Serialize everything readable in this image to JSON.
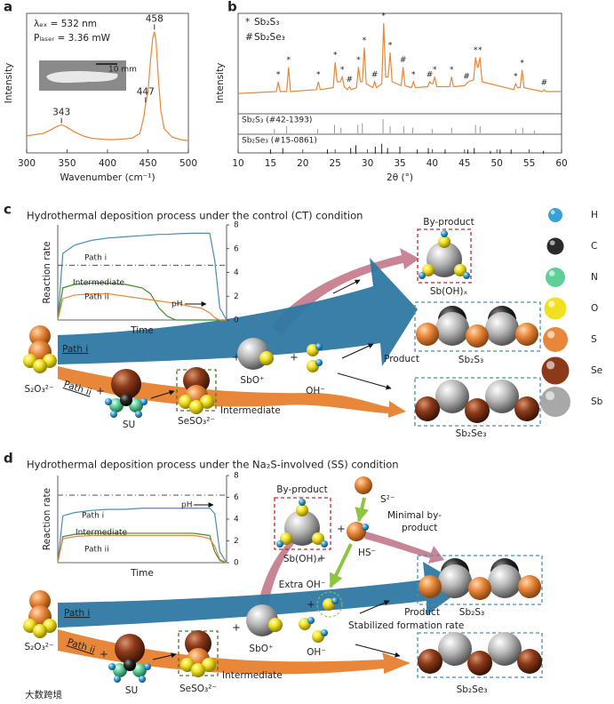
{
  "chart_data": [
    {
      "type": "line",
      "panel_label": "a",
      "x_label": "Wavenumber (cm⁻¹)",
      "y_label": "Intensity",
      "annotations": [
        "λₑₓ = 532 nm",
        "Pₗₐₛₑᵣ = 3.36 mW"
      ],
      "inset_label": "10 mm",
      "x": [
        300,
        310,
        320,
        330,
        335,
        340,
        343,
        346,
        350,
        360,
        370,
        380,
        390,
        400,
        410,
        420,
        430,
        440,
        445,
        447,
        450,
        453,
        456,
        458,
        460,
        463,
        466,
        470,
        480,
        490,
        500
      ],
      "series": [
        {
          "color": "#e8873a",
          "values": [
            0.14,
            0.15,
            0.16,
            0.19,
            0.21,
            0.225,
            0.23,
            0.225,
            0.21,
            0.17,
            0.14,
            0.12,
            0.115,
            0.11,
            0.11,
            0.115,
            0.12,
            0.16,
            0.3,
            0.4,
            0.5,
            0.75,
            0.95,
            1.0,
            0.92,
            0.6,
            0.35,
            0.2,
            0.13,
            0.11,
            0.1
          ]
        }
      ],
      "peak_labels": [
        343,
        447,
        458
      ],
      "xlim": [
        300,
        500
      ],
      "xticks": [
        300,
        350,
        400,
        450,
        500
      ],
      "ylim": [
        0,
        1.15
      ],
      "frame": true
    },
    {
      "type": "line",
      "panel_label": "b",
      "x_label": "2θ (°)",
      "y_label": "Intensity",
      "legend": [
        {
          "symbol": "*",
          "label": "Sb₂S₃"
        },
        {
          "symbol": "#",
          "label": "Sb₂Se₃"
        }
      ],
      "x": [
        10,
        15.9,
        16.2,
        16.5,
        17.5,
        17.8,
        18.1,
        22.1,
        22.4,
        22.7,
        24.7,
        25,
        25.3,
        25.8,
        26.1,
        26.4,
        26.9,
        27.2,
        27.5,
        28.3,
        28.6,
        28.9,
        29.2,
        29.5,
        29.8,
        30.8,
        31.1,
        31.4,
        32.2,
        32.5,
        32.8,
        33.2,
        33.5,
        33.8,
        35.2,
        35.5,
        35.8,
        36.8,
        37.1,
        37.4,
        39.3,
        39.6,
        39.9,
        40.1,
        40.4,
        40.7,
        42.7,
        43,
        43.3,
        45,
        45.3,
        45.6,
        46.4,
        46.7,
        47,
        47.1,
        47.4,
        47.7,
        52.6,
        52.9,
        53.2,
        53.6,
        53.9,
        54.2,
        57,
        57.3,
        57.6,
        60
      ],
      "series": [
        {
          "color": "#e8873a",
          "values": [
            0.18,
            0.2,
            0.3,
            0.2,
            0.2,
            0.45,
            0.2,
            0.22,
            0.3,
            0.22,
            0.24,
            0.5,
            0.3,
            0.3,
            0.35,
            0.25,
            0.22,
            0.25,
            0.22,
            0.24,
            0.45,
            0.3,
            0.3,
            0.65,
            0.28,
            0.24,
            0.3,
            0.24,
            0.28,
            0.9,
            0.35,
            0.35,
            0.6,
            0.3,
            0.26,
            0.45,
            0.26,
            0.24,
            0.3,
            0.24,
            0.25,
            0.3,
            0.28,
            0.28,
            0.35,
            0.25,
            0.25,
            0.35,
            0.25,
            0.26,
            0.28,
            0.3,
            0.32,
            0.55,
            0.45,
            0.45,
            0.55,
            0.3,
            0.22,
            0.28,
            0.24,
            0.24,
            0.42,
            0.24,
            0.2,
            0.22,
            0.2,
            0.2
          ]
        }
      ],
      "peak_markers": [
        {
          "x": 16.2,
          "label": "*"
        },
        {
          "x": 17.8,
          "label": "*"
        },
        {
          "x": 22.4,
          "label": "*"
        },
        {
          "x": 25,
          "label": "*"
        },
        {
          "x": 26.1,
          "label": "*"
        },
        {
          "x": 27.2,
          "label": "#"
        },
        {
          "x": 28.6,
          "label": "*"
        },
        {
          "x": 29.5,
          "label": "*"
        },
        {
          "x": 31.1,
          "label": "#"
        },
        {
          "x": 32.5,
          "label": "*"
        },
        {
          "x": 33.5,
          "label": "*"
        },
        {
          "x": 35.5,
          "label": "#"
        },
        {
          "x": 37.1,
          "label": "*"
        },
        {
          "x": 39.6,
          "label": "#"
        },
        {
          "x": 40.4,
          "label": "*"
        },
        {
          "x": 43,
          "label": "*"
        },
        {
          "x": 45.3,
          "label": "#"
        },
        {
          "x": 46.7,
          "label": "*"
        },
        {
          "x": 47.4,
          "label": "*"
        },
        {
          "x": 52.9,
          "label": "*"
        },
        {
          "x": 53.9,
          "label": "*"
        },
        {
          "x": 57.3,
          "label": "#"
        }
      ],
      "references": [
        {
          "label": "Sb₂S₃ (#42-1393)",
          "color": "#999999",
          "positions": [
            15.6,
            17.5,
            22.3,
            24.9,
            25.9,
            28.5,
            29.2,
            32.4,
            33.5,
            35.6,
            37.0,
            40.0,
            43.0,
            46.7,
            47.4,
            52.9,
            54.0,
            55.8
          ],
          "heights": [
            0.3,
            0.5,
            0.3,
            0.6,
            0.4,
            0.6,
            0.7,
            1,
            0.5,
            0.5,
            0.4,
            0.3,
            0.4,
            0.6,
            0.5,
            0.3,
            0.4,
            0.2
          ]
        },
        {
          "label": "Sb₂Se₃ (#15-0861)",
          "color": "#222222",
          "positions": [
            15.0,
            16.9,
            23.8,
            27.4,
            28.2,
            31.2,
            32.2,
            33.1,
            35.0,
            37.7,
            39.4,
            42.0,
            45.5,
            46.5,
            49.0,
            50.5,
            52.2,
            57.2
          ],
          "heights": [
            0.3,
            0.4,
            0.3,
            0.4,
            0.6,
            0.5,
            0.7,
            0.4,
            0.5,
            0.3,
            0.4,
            0.3,
            0.3,
            0.4,
            0.2,
            0.3,
            0.3,
            0.2
          ]
        }
      ],
      "xlim": [
        10,
        60
      ],
      "xticks": [
        10,
        15,
        20,
        25,
        30,
        35,
        40,
        45,
        50,
        55,
        60
      ],
      "ylim": [
        0,
        1
      ],
      "frame": true
    },
    {
      "type": "line",
      "x_label": "Time",
      "y_label": "Reaction rate",
      "x": [
        0,
        0.3,
        1,
        2,
        3,
        4,
        5,
        5.5,
        6,
        6.5,
        7,
        8,
        8.5,
        9,
        9.3,
        9.6,
        10
      ],
      "series": [
        {
          "name": "Path i",
          "color": "#4b8db5",
          "values": [
            0,
            5.6,
            6.3,
            6.7,
            6.9,
            7.0,
            7.1,
            7.15,
            7.2,
            7.2,
            7.25,
            7.3,
            7.3,
            7.3,
            5,
            1,
            0
          ]
        },
        {
          "name": "Intermediate",
          "color": "#3f8a2e",
          "values": [
            0,
            2.7,
            3.0,
            3.1,
            3.1,
            3.0,
            2.7,
            2.2,
            1.0,
            0.3,
            0,
            0,
            0,
            0,
            0,
            0,
            0
          ]
        },
        {
          "name": "Path ii",
          "color": "#e8873a",
          "values": [
            0,
            1.8,
            2.1,
            2.2,
            2.2,
            2.0,
            1.8,
            1.7,
            1.6,
            1.5,
            1.4,
            1.1,
            1.0,
            0.6,
            0.2,
            0,
            0
          ]
        },
        {
          "name": "pH",
          "color": "#666666",
          "dash": "dashdot",
          "values": [
            4.6,
            4.6,
            4.6,
            4.6,
            4.6,
            4.6,
            4.6,
            4.6,
            4.6,
            4.6,
            4.6,
            4.6,
            4.6,
            4.6,
            4.6,
            4.6,
            4.6
          ]
        }
      ],
      "xlim": [
        0,
        10
      ],
      "ylim": [
        0,
        8
      ],
      "yticks": [
        0,
        2,
        4,
        6,
        8
      ],
      "ytick_side": "right",
      "frame": false
    },
    {
      "type": "line",
      "x_label": "Time",
      "y_label": "Reaction rate",
      "x": [
        0,
        0.3,
        1,
        2,
        3,
        4,
        5,
        5.5,
        6,
        6.5,
        7,
        8,
        8.5,
        9,
        9.3,
        9.6,
        10
      ],
      "series": [
        {
          "name": "Path i",
          "color": "#4b8db5",
          "values": [
            0,
            4.3,
            4.6,
            4.8,
            4.9,
            4.9,
            5.0,
            5.0,
            5.0,
            5.0,
            5.0,
            5.0,
            5.0,
            5.0,
            4.5,
            1,
            0
          ]
        },
        {
          "name": "Intermediate",
          "color": "#3f8a2e",
          "values": [
            0,
            2.4,
            2.6,
            2.7,
            2.7,
            2.7,
            2.7,
            2.7,
            2.7,
            2.7,
            2.7,
            2.7,
            2.6,
            2.5,
            1,
            0.2,
            0
          ]
        },
        {
          "name": "Path ii",
          "color": "#e8873a",
          "values": [
            0,
            2.2,
            2.4,
            2.5,
            2.5,
            2.5,
            2.5,
            2.5,
            2.5,
            2.5,
            2.5,
            2.5,
            2.4,
            2.2,
            1.5,
            0.3,
            0
          ]
        },
        {
          "name": "pH",
          "color": "#666666",
          "dash": "dashdot",
          "values": [
            6.2,
            6.2,
            6.2,
            6.2,
            6.2,
            6.2,
            6.2,
            6.2,
            6.2,
            6.2,
            6.2,
            6.2,
            6.2,
            6.2,
            6.2,
            6.2,
            6.2
          ]
        }
      ],
      "xlim": [
        0,
        10
      ],
      "ylim": [
        0,
        8
      ],
      "yticks": [
        0,
        2,
        4,
        6,
        8
      ],
      "ytick_side": "right",
      "frame": false
    }
  ],
  "panels": {
    "c": {
      "label": "c",
      "title": "Hydrothermal deposition process under the control (CT) condition",
      "by_product": "By-product",
      "by_product_species": "Sb(OH)ₓ",
      "product": "Product",
      "sb2s3": "Sb₂S₃",
      "sb2se3": "Sb₂Se₃",
      "path_i": "Path i",
      "path_ii": "Path ii",
      "precursor": "S₂O₃²⁻",
      "su": "SU",
      "intermediate_species": "SeSO₃²⁻",
      "intermediate": "Intermediate",
      "sbo": "SbO⁺",
      "oh": "OH⁻",
      "plus": "+"
    },
    "d": {
      "label": "d",
      "title": "Hydrothermal deposition process under the Na₂S-involved (SS) condition",
      "by_product": "By-product",
      "by_product_species": "Sb(OH)ₓ",
      "product": "Product",
      "sb2s3": "Sb₂S₃",
      "sb2se3": "Sb₂Se₃",
      "path_i": "Path i",
      "path_ii": "Path ii",
      "precursor": "S₂O₃²⁻",
      "su": "SU",
      "intermediate_species": "SeSO₃²⁻",
      "intermediate": "Intermediate",
      "sbo": "SbO⁺",
      "oh": "OH⁻",
      "plus": "+",
      "s2": "S²⁻",
      "hs": "HS⁻",
      "minimal_by_product": [
        "Minimal by-",
        "product"
      ],
      "extra_oh": "Extra OH⁻",
      "stabilized": "Stabilized formation rate"
    }
  },
  "atom_legend": [
    {
      "label": "H",
      "color": "#3aa0d8"
    },
    {
      "label": "C",
      "color": "#2a2a2a"
    },
    {
      "label": "N",
      "color": "#5fcf9a"
    },
    {
      "label": "O",
      "color": "#f0e020"
    },
    {
      "label": "S",
      "color": "#e8873a"
    },
    {
      "label": "Se",
      "color": "#8b3a1a"
    },
    {
      "label": "Sb",
      "color": "#a8a8a8"
    }
  ],
  "watermark": "大数跨境"
}
